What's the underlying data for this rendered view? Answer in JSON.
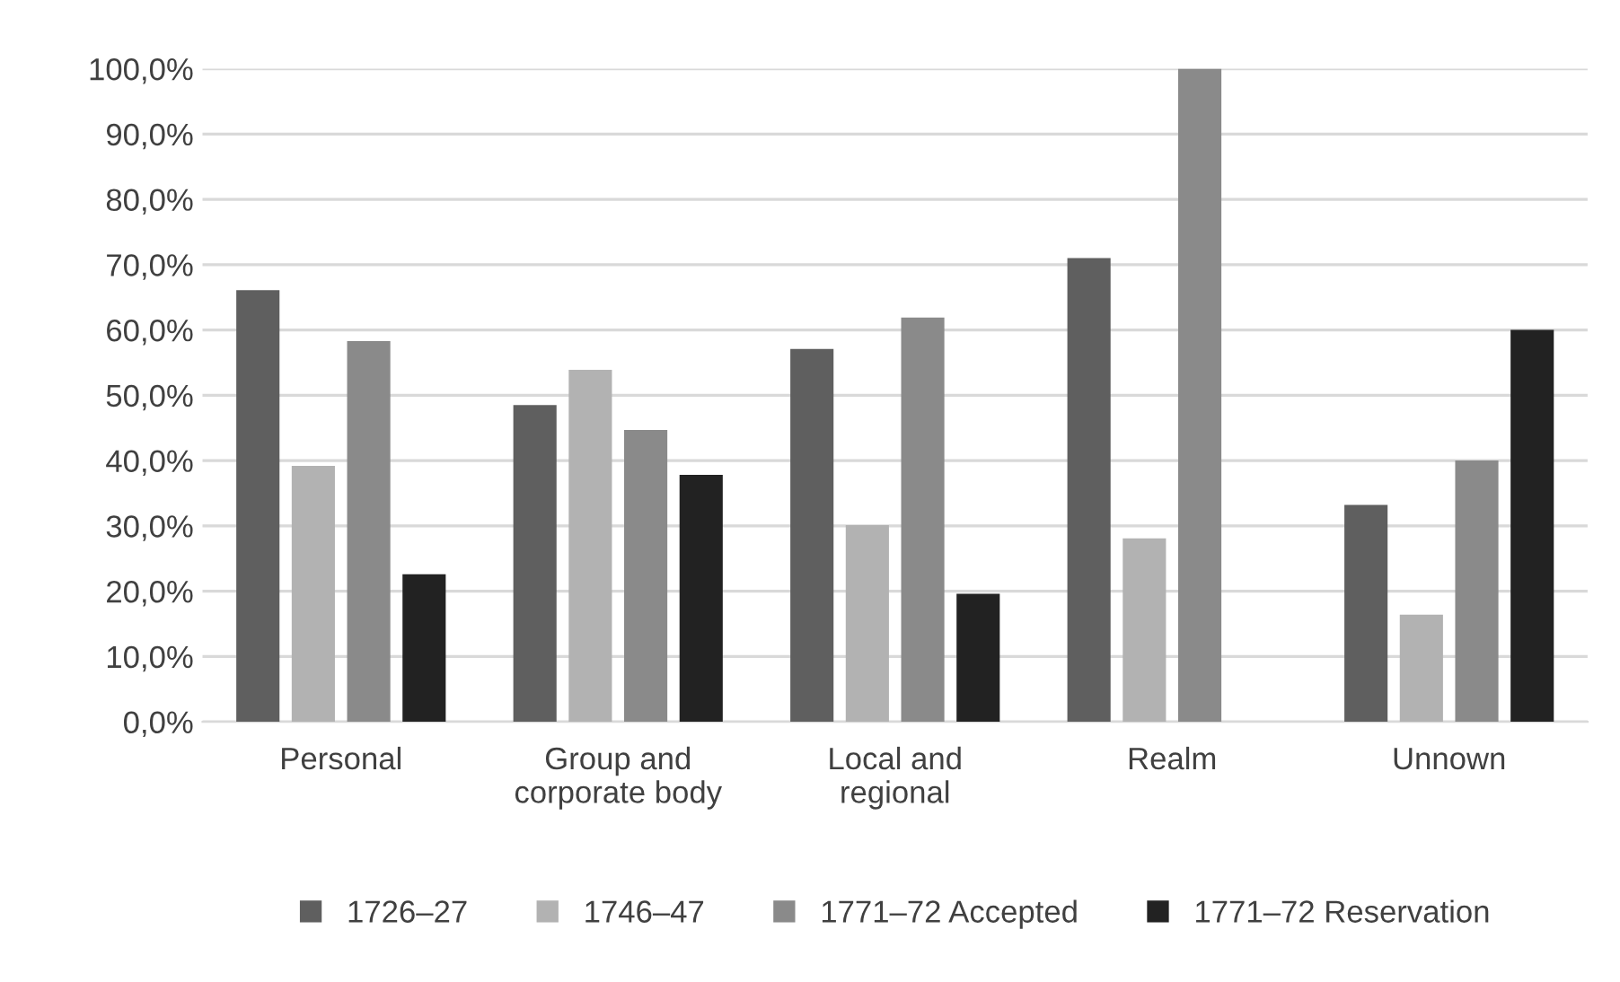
{
  "chart_data": {
    "type": "bar",
    "categories": [
      "Personal",
      "Group and\ncorporate body",
      "Local and\nregional",
      "Realm",
      "Unnown"
    ],
    "series": [
      {
        "name": "1726–27",
        "color": "#5f5f5f",
        "values": [
          66.1,
          48.5,
          57.1,
          71.0,
          33.2
        ]
      },
      {
        "name": "1746–47",
        "color": "#b2b2b2",
        "values": [
          39.2,
          53.9,
          30.1,
          28.1,
          16.4
        ]
      },
      {
        "name": "1771–72 Accepted",
        "color": "#8a8a8a",
        "values": [
          58.3,
          44.7,
          61.9,
          100.0,
          40.0
        ]
      },
      {
        "name": "1771–72 Reservation",
        "color": "#222222",
        "values": [
          22.6,
          37.8,
          19.6,
          0,
          60.0
        ]
      }
    ],
    "ylim": [
      0,
      100
    ],
    "yticks": [
      {
        "value": 0,
        "label": "0,0%"
      },
      {
        "value": 10,
        "label": "10,0%"
      },
      {
        "value": 20,
        "label": "20,0%"
      },
      {
        "value": 30,
        "label": "30,0%"
      },
      {
        "value": 40,
        "label": "40,0%"
      },
      {
        "value": 50,
        "label": "50,0%"
      },
      {
        "value": 60,
        "label": "60,0%"
      },
      {
        "value": 70,
        "label": "70,0%"
      },
      {
        "value": 80,
        "label": "80,0%"
      },
      {
        "value": 90,
        "label": "90,0%"
      },
      {
        "value": 100,
        "label": "100,0%"
      }
    ],
    "grid": "y",
    "legend": "bottom"
  }
}
